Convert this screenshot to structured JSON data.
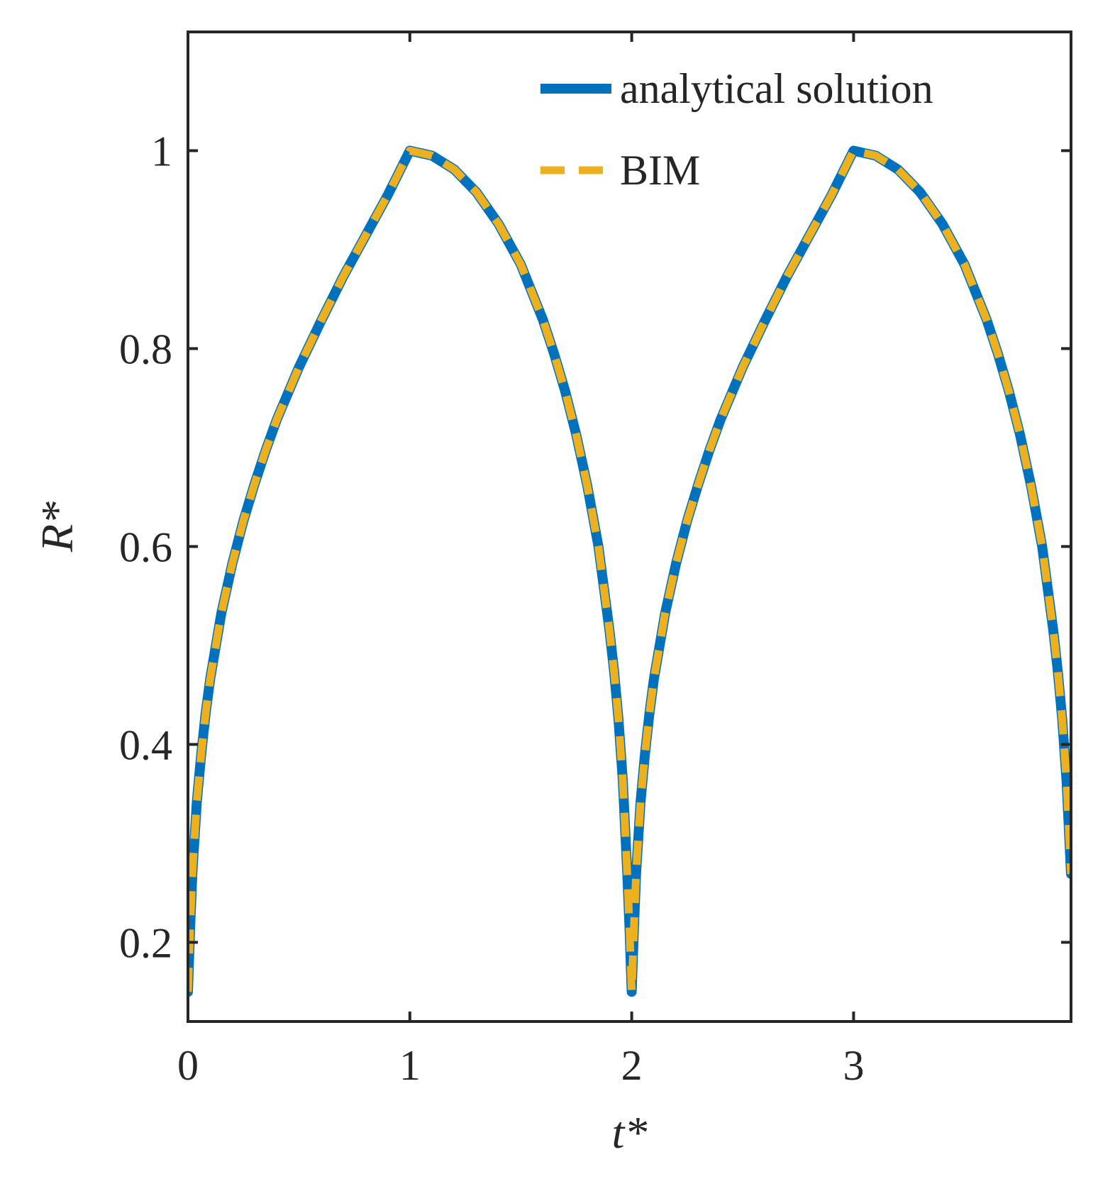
{
  "chart_data": {
    "type": "line",
    "title": "",
    "xlabel": "t*",
    "ylabel": "R*",
    "xlim": [
      0,
      3.98
    ],
    "ylim": [
      0.12,
      1.12
    ],
    "xticks": [
      0,
      1,
      2,
      3
    ],
    "xtick_labels": [
      "0",
      "1",
      "2",
      "3"
    ],
    "yticks": [
      0.2,
      0.4,
      0.6,
      0.8,
      1
    ],
    "ytick_labels": [
      "0.2",
      "0.4",
      "0.6",
      "0.8",
      "1"
    ],
    "grid": false,
    "legend_position": "top-right",
    "series": [
      {
        "name": "analytical solution",
        "style": "solid",
        "color": "#0072BD",
        "x": [
          0,
          0.01,
          0.02,
          0.04,
          0.06,
          0.08,
          0.1,
          0.15,
          0.2,
          0.25,
          0.3,
          0.35,
          0.4,
          0.5,
          0.6,
          0.7,
          0.8,
          0.9,
          1.0,
          1.1,
          1.2,
          1.3,
          1.4,
          1.5,
          1.6,
          1.65,
          1.7,
          1.75,
          1.8,
          1.85,
          1.9,
          1.92,
          1.94,
          1.96,
          1.98,
          1.99,
          2.0,
          2.01,
          2.02,
          2.04,
          2.06,
          2.08,
          2.1,
          2.15,
          2.2,
          2.25,
          2.3,
          2.35,
          2.4,
          2.5,
          2.6,
          2.7,
          2.8,
          2.9,
          3.0,
          3.1,
          3.2,
          3.3,
          3.4,
          3.5,
          3.6,
          3.65,
          3.7,
          3.75,
          3.8,
          3.85,
          3.9,
          3.92,
          3.94,
          3.96,
          3.98
        ],
        "y": [
          0.15,
          0.215,
          0.271,
          0.342,
          0.391,
          0.432,
          0.466,
          0.532,
          0.583,
          0.626,
          0.663,
          0.697,
          0.728,
          0.781,
          0.828,
          0.873,
          0.914,
          0.955,
          1.0,
          0.995,
          0.981,
          0.958,
          0.926,
          0.885,
          0.829,
          0.795,
          0.757,
          0.713,
          0.661,
          0.6,
          0.515,
          0.475,
          0.426,
          0.363,
          0.269,
          0.215,
          0.15,
          0.215,
          0.271,
          0.342,
          0.391,
          0.432,
          0.466,
          0.532,
          0.583,
          0.626,
          0.663,
          0.697,
          0.728,
          0.781,
          0.828,
          0.873,
          0.914,
          0.955,
          1.0,
          0.995,
          0.981,
          0.958,
          0.926,
          0.885,
          0.829,
          0.795,
          0.757,
          0.713,
          0.661,
          0.6,
          0.515,
          0.475,
          0.426,
          0.363,
          0.269
        ]
      },
      {
        "name": "BIM",
        "style": "dashed",
        "color": "#EDB120",
        "x": [
          0,
          0.01,
          0.02,
          0.04,
          0.06,
          0.08,
          0.1,
          0.15,
          0.2,
          0.25,
          0.3,
          0.35,
          0.4,
          0.5,
          0.6,
          0.7,
          0.8,
          0.9,
          1.0,
          1.1,
          1.2,
          1.3,
          1.4,
          1.5,
          1.6,
          1.65,
          1.7,
          1.75,
          1.8,
          1.85,
          1.9,
          1.92,
          1.94,
          1.96,
          1.98,
          1.99,
          2.0,
          2.01,
          2.02,
          2.04,
          2.06,
          2.08,
          2.1,
          2.15,
          2.2,
          2.25,
          2.3,
          2.35,
          2.4,
          2.5,
          2.6,
          2.7,
          2.8,
          2.9,
          3.0,
          3.1,
          3.2,
          3.3,
          3.4,
          3.5,
          3.6,
          3.65,
          3.7,
          3.75,
          3.8,
          3.85,
          3.9,
          3.92,
          3.94,
          3.96,
          3.98
        ],
        "y": [
          0.15,
          0.215,
          0.271,
          0.342,
          0.391,
          0.432,
          0.466,
          0.532,
          0.583,
          0.626,
          0.663,
          0.697,
          0.728,
          0.781,
          0.828,
          0.873,
          0.914,
          0.955,
          1.0,
          0.995,
          0.981,
          0.958,
          0.926,
          0.885,
          0.829,
          0.795,
          0.757,
          0.713,
          0.661,
          0.6,
          0.515,
          0.475,
          0.426,
          0.363,
          0.269,
          0.215,
          0.15,
          0.215,
          0.271,
          0.342,
          0.391,
          0.432,
          0.466,
          0.532,
          0.583,
          0.626,
          0.663,
          0.697,
          0.728,
          0.781,
          0.828,
          0.873,
          0.914,
          0.955,
          1.0,
          0.995,
          0.981,
          0.958,
          0.926,
          0.885,
          0.829,
          0.795,
          0.757,
          0.713,
          0.661,
          0.6,
          0.515,
          0.475,
          0.426,
          0.363,
          0.269
        ]
      }
    ]
  }
}
